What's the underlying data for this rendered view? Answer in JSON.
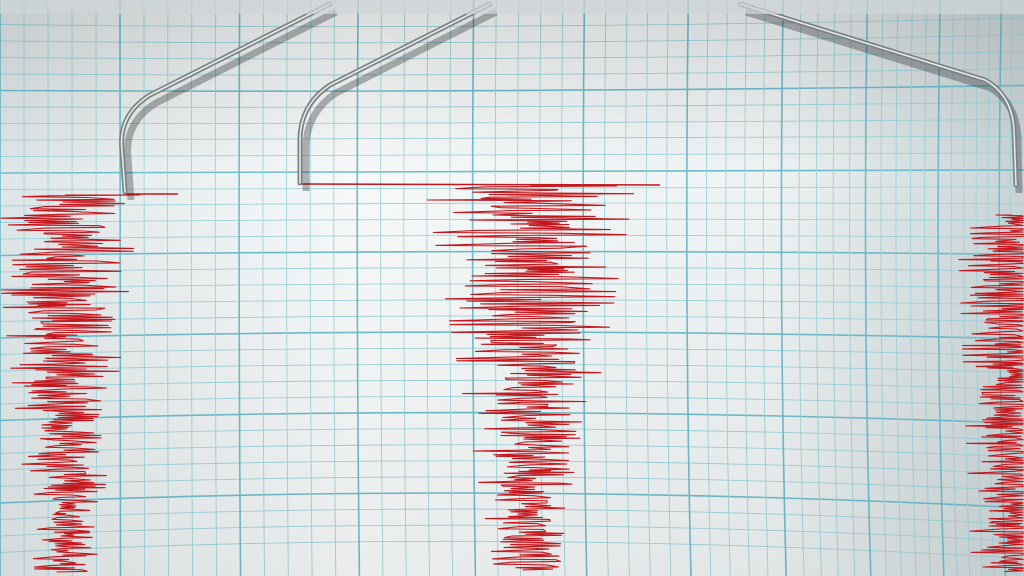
{
  "scene": {
    "subject": "seismograph",
    "colors": {
      "paper": "#f4f6f6",
      "paper_shade": "#cfd8da",
      "grid_minor": "#9fd3dc",
      "grid_major": "#6fbccb",
      "trace": "#c4161c",
      "needle": "#a7acae"
    },
    "traces": [
      {
        "name": "left-trace",
        "amplitude_level": 0.6
      },
      {
        "name": "center-trace",
        "amplitude_level": 1.0
      },
      {
        "name": "right-edge-trace",
        "amplitude_level": 0.5
      }
    ],
    "needle_count": 3
  }
}
